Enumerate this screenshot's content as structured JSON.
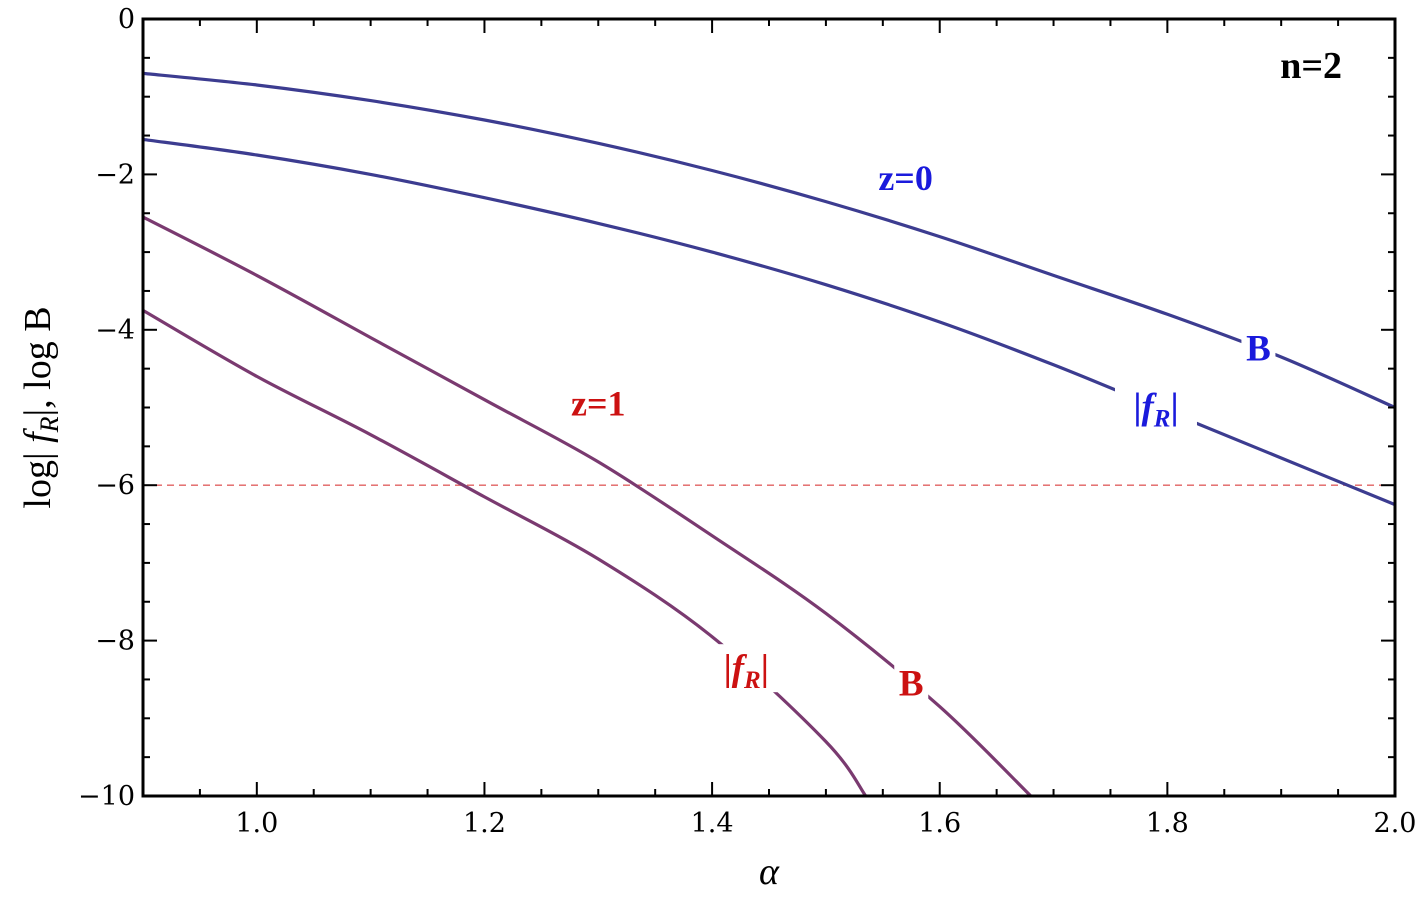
{
  "chart_data": {
    "type": "line",
    "title": "",
    "xlabel": "α",
    "ylabel": "log| f_R|, log B",
    "xlim": [
      0.9,
      2.0
    ],
    "ylim": [
      -10,
      0
    ],
    "x_ticks": [
      1.0,
      1.2,
      1.4,
      1.6,
      1.8,
      2.0
    ],
    "x_tick_labels": [
      "1.0",
      "1.2",
      "1.4",
      "1.6",
      "1.8",
      "2.0"
    ],
    "y_ticks": [
      0,
      -2,
      -4,
      -6,
      -8,
      -10
    ],
    "y_tick_labels": [
      "0",
      "−2",
      "−4",
      "−6",
      "−8",
      "−10"
    ],
    "panel_label": "n=2",
    "reference_line": {
      "y": -6,
      "style": "dashed",
      "color": "#e06060"
    },
    "group_labels": [
      {
        "text": "z=0",
        "x": 1.57,
        "y": -2.2,
        "color": "#1a1adc"
      },
      {
        "text": "z=1",
        "x": 1.3,
        "y": -5.1,
        "color": "#cc1111"
      }
    ],
    "series": [
      {
        "name": "B",
        "group": "z=0",
        "color": "#3c3c90",
        "x": [
          0.9,
          1.0,
          1.1,
          1.2,
          1.3,
          1.4,
          1.5,
          1.6,
          1.7,
          1.8,
          1.9,
          2.0
        ],
        "y": [
          -0.7,
          -0.85,
          -1.05,
          -1.3,
          -1.6,
          -1.95,
          -2.35,
          -2.8,
          -3.3,
          -3.8,
          -4.35,
          -5.0
        ],
        "label_at": 1.88
      },
      {
        "name": "|f_R|",
        "group": "z=0",
        "color": "#3c3c90",
        "x": [
          0.9,
          1.0,
          1.1,
          1.2,
          1.3,
          1.4,
          1.5,
          1.6,
          1.7,
          1.8,
          1.9,
          2.0
        ],
        "y": [
          -1.55,
          -1.75,
          -2.0,
          -2.3,
          -2.63,
          -3.0,
          -3.42,
          -3.9,
          -4.45,
          -5.05,
          -5.65,
          -6.25
        ],
        "label_at": 1.79
      },
      {
        "name": "B",
        "group": "z=1",
        "color": "#7a3a70",
        "x": [
          0.9,
          1.0,
          1.1,
          1.2,
          1.3,
          1.4,
          1.5,
          1.6,
          1.68
        ],
        "y": [
          -2.55,
          -3.3,
          -4.1,
          -4.9,
          -5.7,
          -6.65,
          -7.65,
          -8.85,
          -10.0
        ],
        "label_at": 1.575
      },
      {
        "name": "|f_R|",
        "group": "z=1",
        "color": "#7a3a70",
        "x": [
          0.9,
          1.0,
          1.1,
          1.2,
          1.3,
          1.4,
          1.5,
          1.535
        ],
        "y": [
          -3.75,
          -4.6,
          -5.35,
          -6.15,
          -6.95,
          -7.95,
          -9.3,
          -10.0
        ],
        "label_at": 1.43
      }
    ]
  }
}
